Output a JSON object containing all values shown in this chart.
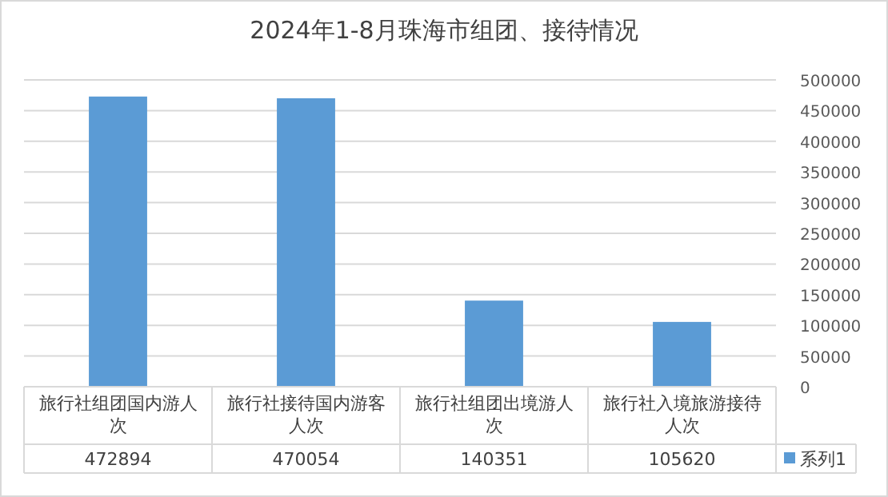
{
  "chart_data": {
    "type": "bar",
    "title": "2024年1-8月珠海市组团、接待情况",
    "categories": [
      "旅行社组团国内游人次",
      "旅行社接待国内游客人次",
      "旅行社组团出境游人次",
      "旅行社入境旅游接待人次"
    ],
    "series": [
      {
        "name": "系列1",
        "color": "#5b9bd5",
        "values": [
          472894,
          470054,
          140351,
          105620
        ]
      }
    ],
    "ylim": [
      0,
      500000
    ],
    "yticks": [
      0,
      50000,
      100000,
      150000,
      200000,
      250000,
      300000,
      350000,
      400000,
      450000,
      500000
    ],
    "grid": "y",
    "data_labels": true,
    "legend": "bottom right"
  }
}
